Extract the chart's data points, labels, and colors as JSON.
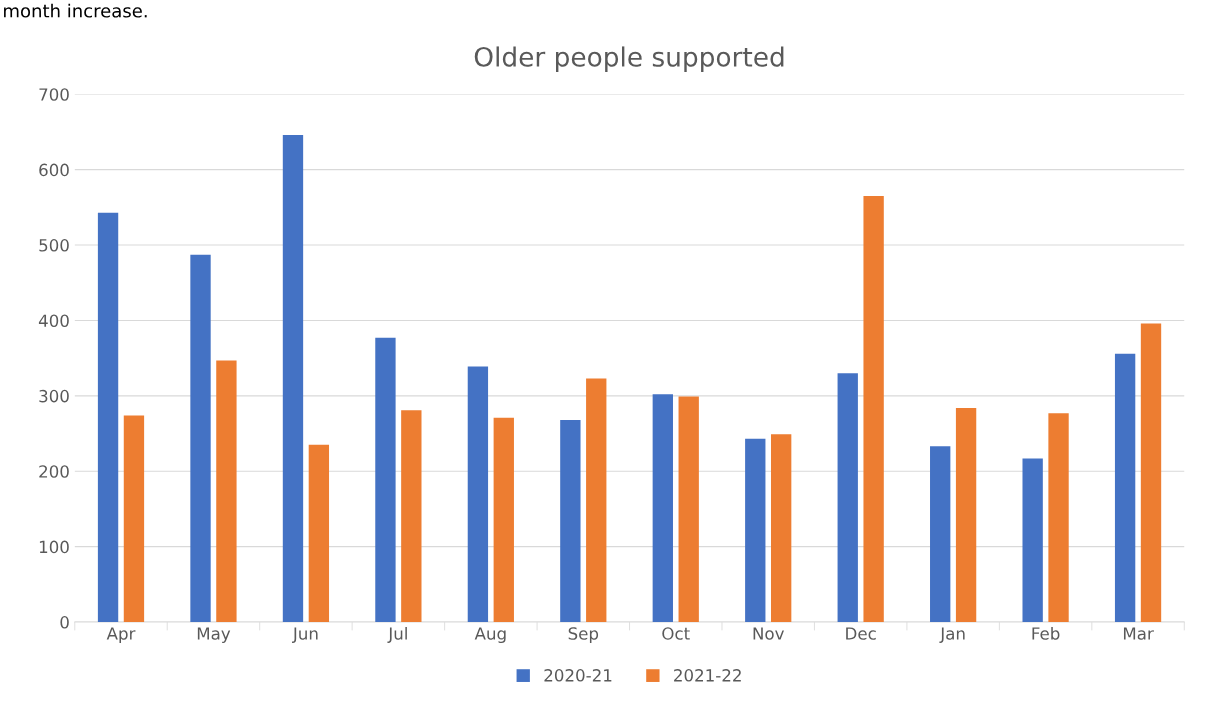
{
  "chart_data": {
    "type": "bar",
    "title": "Older people supported",
    "categories": [
      "Apr",
      "May",
      "Jun",
      "Jul",
      "Aug",
      "Sep",
      "Oct",
      "Nov",
      "Dec",
      "Jan",
      "Feb",
      "Mar"
    ],
    "series": [
      {
        "name": "2020-21",
        "color": "#4472c4",
        "values": [
          543,
          487,
          646,
          377,
          339,
          268,
          302,
          243,
          330,
          233,
          217,
          356
        ]
      },
      {
        "name": "2021-22",
        "color": "#ed7d31",
        "values": [
          274,
          347,
          235,
          281,
          271,
          323,
          299,
          249,
          565,
          284,
          277,
          396
        ]
      }
    ],
    "ylim": [
      0,
      700
    ],
    "yticks": [
      0,
      100,
      200,
      300,
      400,
      500,
      600,
      700
    ],
    "grid": "y",
    "legend": "bottom",
    "annotations": [
      "month increase."
    ]
  }
}
